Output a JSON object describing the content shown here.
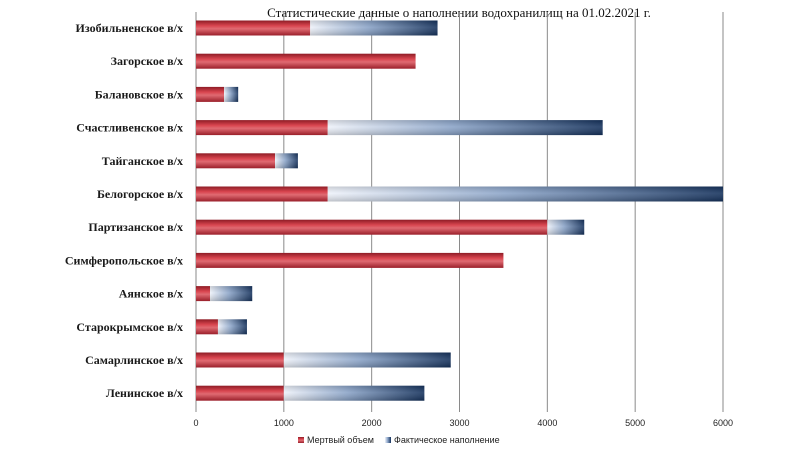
{
  "chart_data": {
    "type": "bar",
    "orientation": "horizontal",
    "stacked": true,
    "title": "Статистические данные о наполнении водохранилищ на 01.02.2021 г.",
    "categories": [
      "Изобильненское в/х",
      "Загорское в/х",
      "Балановское в/х",
      "Счастливенское в/х",
      "Тайганское в/х",
      "Белогорское в/х",
      "Партизанское в/х",
      "Симферопольское в/х",
      "Аянское в/х",
      "Старокрымское в/х",
      "Самарлинское в/х",
      "Ленинское в/х"
    ],
    "series": [
      {
        "name": "Мертвый объем",
        "color": "#c0303d",
        "values": [
          1300,
          2500,
          320,
          1500,
          900,
          1500,
          4000,
          3500,
          160,
          250,
          1000,
          1000
        ]
      },
      {
        "name": "Фактическое наполнение",
        "color": "#1f3a66",
        "values": [
          1450,
          0,
          160,
          3130,
          260,
          4500,
          420,
          0,
          480,
          330,
          1900,
          1600
        ]
      }
    ],
    "xlim": [
      0,
      6000
    ],
    "xticks": [
      "0",
      "1000",
      "2000",
      "3000",
      "4000",
      "5000",
      "6000"
    ],
    "grid": "vertical",
    "legend_position": "bottom"
  }
}
